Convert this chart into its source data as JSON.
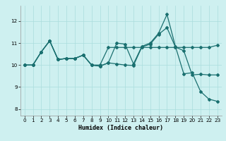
{
  "xlabel": "Humidex (Indice chaleur)",
  "bg_color": "#cef0f0",
  "line_color": "#1a7070",
  "grid_color": "#aadddd",
  "xlim": [
    -0.5,
    23.5
  ],
  "ylim": [
    7.7,
    12.7
  ],
  "yticks": [
    8,
    9,
    10,
    11,
    12
  ],
  "xticks": [
    0,
    1,
    2,
    3,
    4,
    5,
    6,
    7,
    8,
    9,
    10,
    11,
    12,
    13,
    14,
    15,
    16,
    17,
    18,
    19,
    20,
    21,
    22,
    23
  ],
  "line1_x": [
    0,
    1,
    2,
    3,
    4,
    5,
    6,
    7,
    8,
    9,
    10,
    11,
    12,
    13,
    14,
    15,
    16,
    17,
    18,
    19,
    20,
    21,
    22,
    23
  ],
  "line1_y": [
    10.0,
    10.0,
    10.6,
    11.1,
    10.25,
    10.3,
    10.3,
    10.45,
    10.0,
    10.0,
    10.8,
    10.8,
    10.8,
    10.8,
    10.8,
    10.8,
    10.8,
    10.8,
    10.8,
    10.8,
    10.8,
    10.8,
    10.8,
    10.9
  ],
  "line2_x": [
    0,
    1,
    2,
    3,
    4,
    5,
    6,
    7,
    8,
    9,
    10,
    11,
    12,
    13,
    14,
    15,
    16,
    17,
    18,
    19,
    20,
    21,
    22,
    23
  ],
  "line2_y": [
    10.0,
    10.0,
    10.6,
    11.1,
    10.25,
    10.3,
    10.3,
    10.45,
    10.0,
    9.95,
    10.1,
    11.0,
    10.95,
    10.05,
    10.85,
    11.0,
    11.45,
    12.3,
    10.85,
    9.6,
    9.65,
    8.8,
    8.45,
    8.35
  ],
  "line3_x": [
    0,
    1,
    2,
    3,
    4,
    5,
    6,
    7,
    8,
    9,
    10,
    11,
    12,
    13,
    14,
    15,
    16,
    17,
    18,
    19,
    20,
    21,
    22,
    23
  ],
  "line3_y": [
    10.0,
    10.0,
    10.6,
    11.1,
    10.25,
    10.3,
    10.3,
    10.45,
    10.0,
    9.95,
    10.1,
    10.05,
    10.0,
    9.98,
    10.82,
    10.95,
    11.4,
    11.7,
    10.82,
    10.65,
    9.55,
    9.58,
    9.55,
    9.55
  ],
  "marker": "D",
  "markersize": 2.0,
  "linewidth": 0.9
}
